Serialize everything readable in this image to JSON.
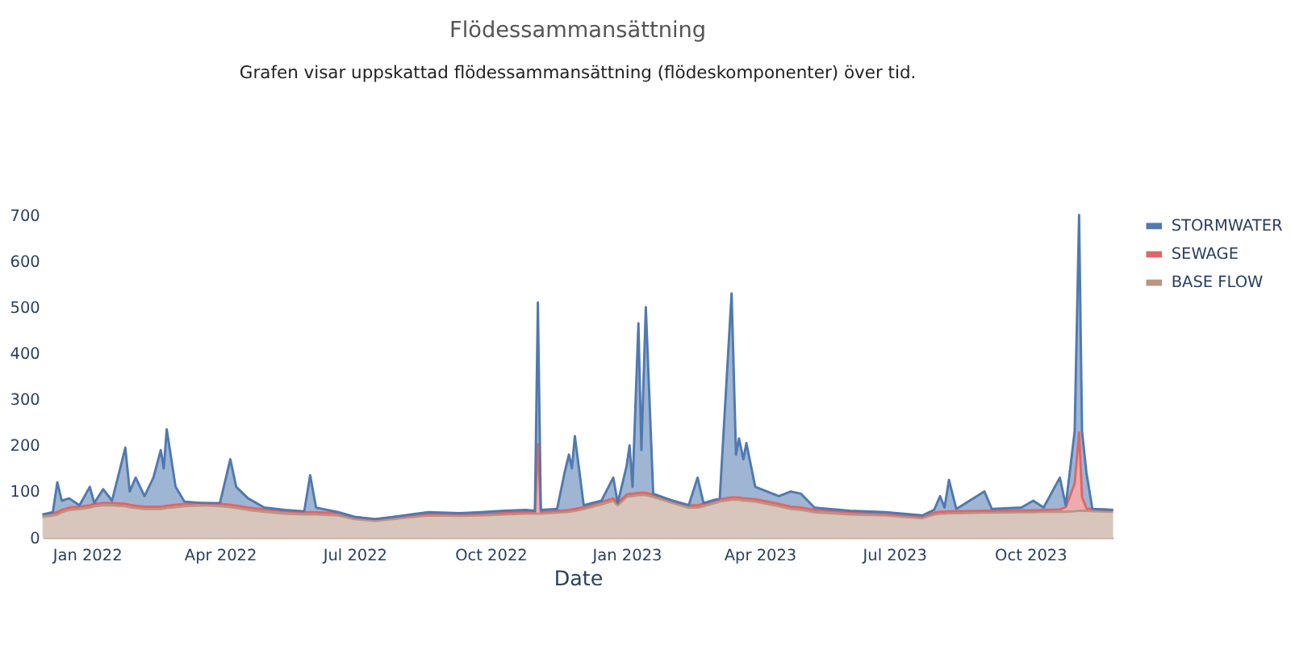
{
  "chart_data": {
    "type": "area",
    "title": "Flödessammansättning",
    "subtitle": "Grafen visar uppskattad flödessammansättning (flödeskomponenter) över tid.",
    "xlabel": "Date",
    "stacked": true,
    "legend": "top right",
    "grid": false,
    "x": [
      "2021-12-02",
      "2021-12-09",
      "2021-12-12",
      "2021-12-15",
      "2021-12-20",
      "2021-12-27",
      "2022-01-03",
      "2022-01-06",
      "2022-01-12",
      "2022-01-18",
      "2022-01-27",
      "2022-01-30",
      "2022-02-03",
      "2022-02-09",
      "2022-02-15",
      "2022-02-20",
      "2022-02-22",
      "2022-02-24",
      "2022-03-02",
      "2022-03-08",
      "2022-03-20",
      "2022-04-01",
      "2022-04-08",
      "2022-04-12",
      "2022-04-20",
      "2022-05-01",
      "2022-05-15",
      "2022-05-28",
      "2022-06-01",
      "2022-06-05",
      "2022-06-20",
      "2022-07-01",
      "2022-07-15",
      "2022-08-01",
      "2022-08-20",
      "2022-09-10",
      "2022-09-25",
      "2022-10-10",
      "2022-10-25",
      "2022-10-31",
      "2022-11-02",
      "2022-11-04",
      "2022-11-15",
      "2022-11-20",
      "2022-11-23",
      "2022-11-25",
      "2022-11-27",
      "2022-12-03",
      "2022-12-15",
      "2022-12-23",
      "2022-12-26",
      "2023-01-01",
      "2023-01-03",
      "2023-01-05",
      "2023-01-09",
      "2023-01-11",
      "2023-01-14",
      "2023-01-19",
      "2023-02-01",
      "2023-02-12",
      "2023-02-18",
      "2023-02-22",
      "2023-03-05",
      "2023-03-13",
      "2023-03-16",
      "2023-03-18",
      "2023-03-21",
      "2023-03-23",
      "2023-03-29",
      "2023-04-14",
      "2023-04-22",
      "2023-04-29",
      "2023-05-08",
      "2023-06-01",
      "2023-06-25",
      "2023-07-20",
      "2023-07-28",
      "2023-08-01",
      "2023-08-04",
      "2023-08-07",
      "2023-08-12",
      "2023-08-31",
      "2023-09-05",
      "2023-09-25",
      "2023-10-03",
      "2023-10-10",
      "2023-10-21",
      "2023-10-25",
      "2023-10-31",
      "2023-11-03",
      "2023-11-05",
      "2023-11-08",
      "2023-11-12",
      "2023-11-26"
    ],
    "series": [
      {
        "name": "BASE FLOW",
        "color": "#b89585",
        "values": [
          45,
          48,
          50,
          55,
          60,
          62,
          65,
          68,
          70,
          70,
          68,
          66,
          64,
          62,
          62,
          62,
          63,
          64,
          66,
          68,
          70,
          68,
          66,
          64,
          60,
          56,
          52,
          50,
          50,
          50,
          48,
          40,
          36,
          42,
          48,
          47,
          48,
          50,
          52,
          52,
          52,
          52,
          54,
          55,
          56,
          57,
          58,
          62,
          72,
          80,
          70,
          88,
          90,
          90,
          92,
          92,
          92,
          88,
          75,
          65,
          65,
          68,
          78,
          82,
          82,
          82,
          80,
          80,
          78,
          68,
          62,
          60,
          55,
          50,
          48,
          42,
          50,
          52,
          52,
          53,
          53,
          54,
          54,
          55,
          55,
          56,
          56,
          56,
          57,
          58,
          58,
          58,
          57,
          56
        ]
      },
      {
        "name": "SEWAGE",
        "color": "#e06666",
        "values": [
          5,
          5,
          5,
          5,
          5,
          5,
          5,
          5,
          5,
          5,
          5,
          5,
          5,
          5,
          5,
          5,
          5,
          5,
          5,
          5,
          5,
          5,
          5,
          5,
          5,
          5,
          5,
          5,
          5,
          5,
          5,
          4,
          4,
          4,
          4,
          4,
          4,
          4,
          4,
          4,
          150,
          4,
          4,
          4,
          4,
          4,
          4,
          4,
          5,
          5,
          5,
          5,
          5,
          5,
          5,
          5,
          5,
          5,
          5,
          5,
          5,
          5,
          5,
          5,
          5,
          5,
          5,
          5,
          5,
          5,
          5,
          5,
          5,
          5,
          4,
          4,
          4,
          4,
          4,
          4,
          4,
          4,
          4,
          4,
          4,
          4,
          5,
          10,
          60,
          170,
          30,
          5,
          5,
          4
        ]
      },
      {
        "name": "STORMWATER",
        "color": "#4f79b0",
        "values": [
          0,
          2,
          65,
          20,
          20,
          3,
          40,
          2,
          30,
          5,
          122,
          29,
          61,
          23,
          63,
          123,
          82,
          166,
          39,
          5,
          0,
          2,
          99,
          41,
          20,
          4,
          3,
          2,
          80,
          10,
          2,
          1,
          0,
          1,
          3,
          2,
          3,
          4,
          4,
          2,
          308,
          4,
          4,
          81,
          120,
          89,
          158,
          4,
          3,
          45,
          0,
          62,
          105,
          15,
          368,
          93,
          403,
          2,
          0,
          0,
          60,
          2,
          2,
          443,
          93,
          128,
          85,
          120,
          27,
          17,
          33,
          30,
          5,
          3,
          3,
          2,
          6,
          34,
          9,
          68,
          5,
          42,
          4,
          6,
          21,
          5,
          69,
          4,
          113,
          472,
          142,
          77,
          0,
          0
        ]
      }
    ],
    "ylim": [
      0,
      700
    ],
    "xlim": [
      "2021-12-02",
      "2023-11-26"
    ],
    "yticks": [
      0,
      100,
      200,
      300,
      400,
      500,
      600,
      700
    ],
    "xticks": [
      {
        "value": "2022-01-01",
        "label": "Jan 2022"
      },
      {
        "value": "2022-04-01",
        "label": "Apr 2022"
      },
      {
        "value": "2022-07-01",
        "label": "Jul 2022"
      },
      {
        "value": "2022-10-01",
        "label": "Oct 2022"
      },
      {
        "value": "2023-01-01",
        "label": "Jan 2023"
      },
      {
        "value": "2023-04-01",
        "label": "Apr 2023"
      },
      {
        "value": "2023-07-01",
        "label": "Jul 2023"
      },
      {
        "value": "2023-10-01",
        "label": "Oct 2023"
      }
    ]
  }
}
